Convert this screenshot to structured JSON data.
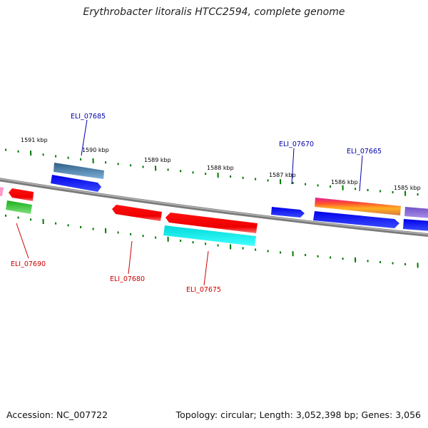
{
  "title": "Erythrobacter litoralis HTCC2594, complete genome",
  "footer": {
    "accession": "Accession: NC_007722",
    "summary": "Topology: circular; Length: 3,052,398 bp; Genes: 3,056"
  },
  "scale_labels": [
    "1591 kbp",
    "1590 kbp",
    "1589 kbp",
    "1588 kbp",
    "1587 kbp",
    "1586 kbp",
    "1585 kbp"
  ],
  "gene_labels": [
    {
      "text": "ELI_07685",
      "color": "#0000aa"
    },
    {
      "text": "ELI_07670",
      "color": "#0000aa"
    },
    {
      "text": "ELI_07665",
      "color": "#0000aa"
    },
    {
      "text": "ELI_07690",
      "color": "#cc0000"
    },
    {
      "text": "ELI_07680",
      "color": "#cc0000"
    },
    {
      "text": "ELI_07675",
      "color": "#cc0000"
    }
  ],
  "colors": {
    "backbone": "#888888",
    "tick": "#007700",
    "forward_label": "#0000aa",
    "reverse_label": "#cc0000"
  }
}
